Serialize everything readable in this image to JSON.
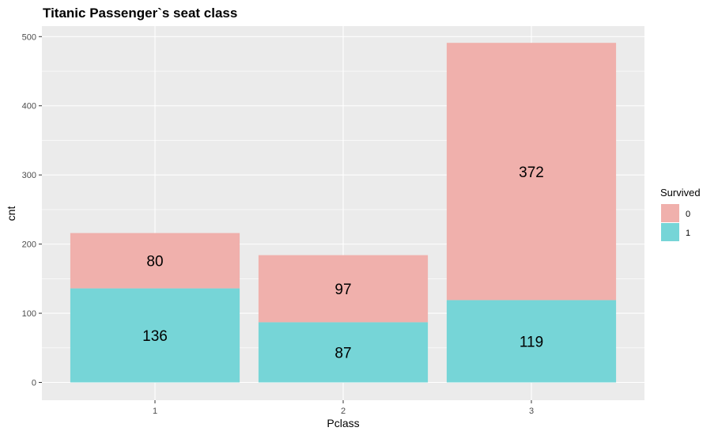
{
  "chart_data": {
    "type": "bar",
    "stacked": true,
    "title": "Titanic Passenger`s seat class",
    "xlabel": "Pclass",
    "ylabel": "cnt",
    "categories": [
      "1",
      "2",
      "3"
    ],
    "series": [
      {
        "name": "1",
        "color": "#76d5d7",
        "values": [
          136,
          87,
          119
        ]
      },
      {
        "name": "0",
        "color": "#f0b0ac",
        "values": [
          80,
          97,
          372
        ]
      }
    ],
    "ylim": [
      0,
      520
    ],
    "yticks": [
      0,
      100,
      200,
      300,
      400,
      500
    ],
    "grid": true,
    "legend": {
      "title": "Survived",
      "position": "right",
      "entries": [
        "0",
        "1"
      ]
    },
    "colors": {
      "panel": "#ebebeb",
      "grid": "#ffffff",
      "survived_0": "#f0b0ac",
      "survived_1": "#76d5d7"
    }
  }
}
